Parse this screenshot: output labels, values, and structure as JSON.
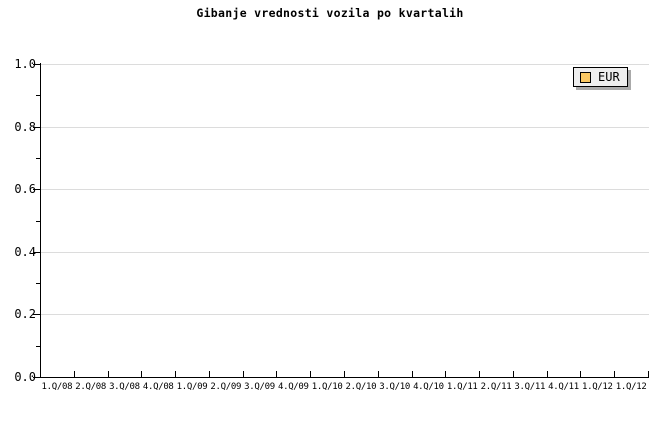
{
  "title": "Gibanje vrednosti vozila po kvartalih",
  "legend": {
    "label": "EUR",
    "swatch_color": "#FAC863",
    "background": "#EEEEEE",
    "border_color": "#000000",
    "shadow_color": "#AAAAAA"
  },
  "colors": {
    "background": "#FFFFFF",
    "axis": "#000000",
    "gridline": "#DCDCDC",
    "text": "#000000"
  },
  "y_axis": {
    "min": 0.0,
    "max": 1.0,
    "major_step": 0.2,
    "minor_step": 0.1,
    "tick_labels": [
      "0.0",
      "0.2",
      "0.4",
      "0.6",
      "0.8",
      "1.0"
    ]
  },
  "x_axis": {
    "categories": [
      "1.Q/08",
      "2.Q/08",
      "3.Q/08",
      "4.Q/08",
      "1.Q/09",
      "2.Q/09",
      "3.Q/09",
      "4.Q/09",
      "1.Q/10",
      "2.Q/10",
      "3.Q/10",
      "4.Q/10",
      "1.Q/11",
      "2.Q/11",
      "3.Q/11",
      "4.Q/11",
      "1.Q/12",
      "1.Q/12"
    ]
  },
  "chart_data": {
    "type": "line",
    "title": "Gibanje vrednosti vozila po kvartalih",
    "categories": [
      "1.Q/08",
      "2.Q/08",
      "3.Q/08",
      "4.Q/08",
      "1.Q/09",
      "2.Q/09",
      "3.Q/09",
      "4.Q/09",
      "1.Q/10",
      "2.Q/10",
      "3.Q/10",
      "4.Q/10",
      "1.Q/11",
      "2.Q/11",
      "3.Q/11",
      "4.Q/11",
      "1.Q/12",
      "1.Q/12"
    ],
    "series": [
      {
        "name": "EUR",
        "color": "#FAC863",
        "values": []
      }
    ],
    "xlabel": "",
    "ylabel": "",
    "ylim": [
      0.0,
      1.0
    ],
    "y_major_ticks": [
      0.0,
      0.2,
      0.4,
      0.6,
      0.8,
      1.0
    ],
    "y_minor_ticks": [
      0.1,
      0.3,
      0.5,
      0.7,
      0.9
    ],
    "grid": "horizontal-major",
    "legend_position": "top-right-inside"
  }
}
